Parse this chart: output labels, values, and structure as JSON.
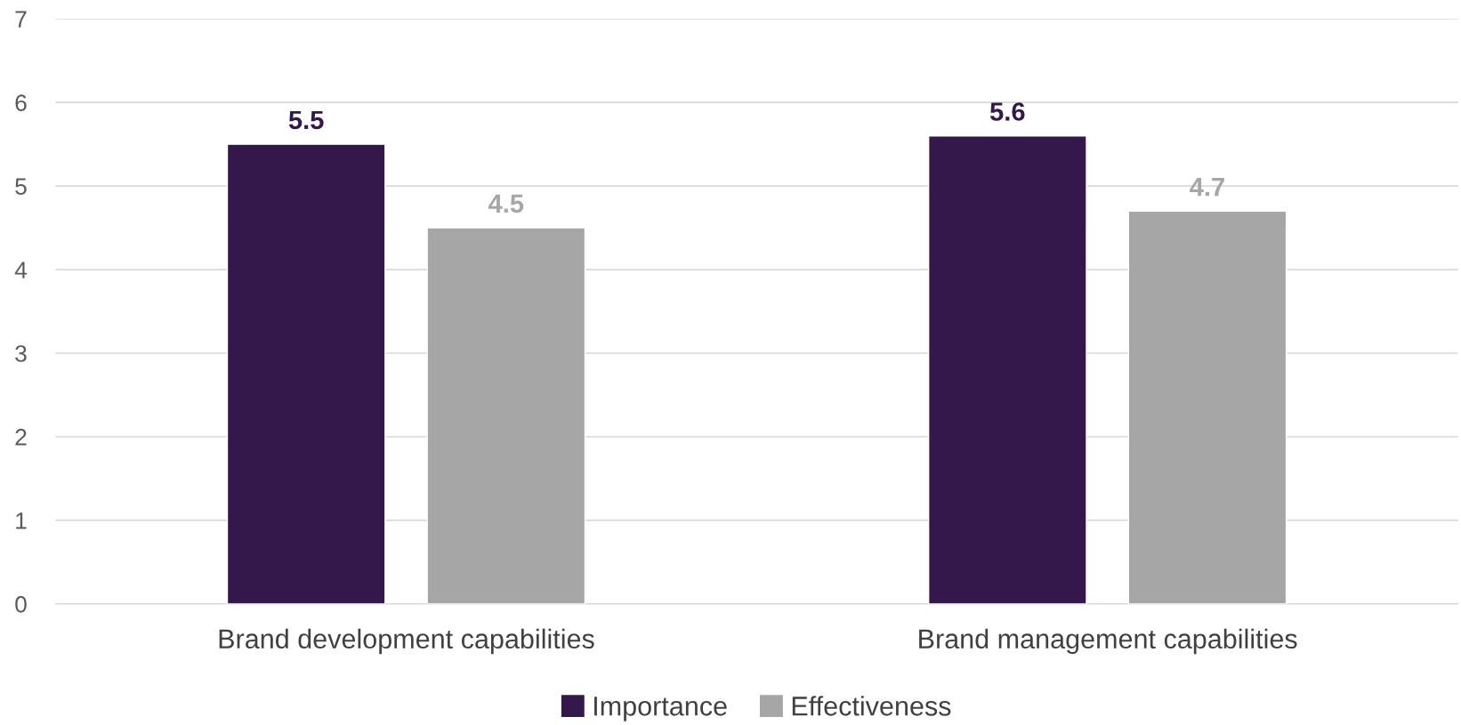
{
  "chart_data": {
    "type": "bar",
    "categories": [
      "Brand development capabilities",
      "Brand management capabilities"
    ],
    "series": [
      {
        "name": "Importance",
        "color": "#35184b",
        "values": [
          5.5,
          5.6
        ]
      },
      {
        "name": "Effectiveness",
        "color": "#a6a6a6",
        "values": [
          4.5,
          4.7
        ]
      }
    ],
    "ylim": [
      0,
      7
    ],
    "yticks": [
      0,
      1,
      2,
      3,
      4,
      5,
      6,
      7
    ],
    "grid": "y",
    "legend": "bottom",
    "data_labels": true
  }
}
